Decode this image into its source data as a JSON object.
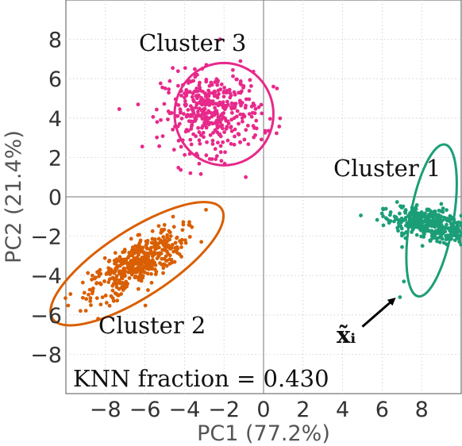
{
  "chart_data": {
    "type": "scatter",
    "xlabel": "PC1 (77.2%)",
    "ylabel": "PC2 (21.4%)",
    "xlim": [
      -10,
      10
    ],
    "ylim": [
      -10,
      10
    ],
    "xticks": [
      -8,
      -6,
      -4,
      -2,
      0,
      2,
      4,
      6,
      8
    ],
    "yticks": [
      -8,
      -6,
      -4,
      -2,
      0,
      2,
      4,
      6,
      8
    ],
    "xtick_labels": [
      "−8",
      "−6",
      "−4",
      "−2",
      "0",
      "2",
      "4",
      "6",
      "8"
    ],
    "ytick_labels": [
      "−8",
      "−6",
      "−4",
      "−2",
      "0",
      "2",
      "4",
      "6",
      "8"
    ],
    "grid": true,
    "clusters": [
      {
        "label": "Cluster 1",
        "color": "#1b9e77",
        "center": [
          8.5,
          -1.4
        ],
        "spread": [
          0.4,
          1.1
        ],
        "tilt_deg": 80,
        "n_points": 400,
        "ellipse": {
          "center": [
            8.5,
            -1.2
          ],
          "rx": 3.9,
          "ry": 1.1,
          "angle_deg": 80
        }
      },
      {
        "label": "Cluster 2",
        "color": "#d95f02",
        "center": [
          -6.4,
          -3.4
        ],
        "spread": [
          1.4,
          0.5
        ],
        "tilt_deg": 33,
        "n_points": 450,
        "ellipse": {
          "center": [
            -6.4,
            -3.4
          ],
          "rx": 5.1,
          "ry": 1.7,
          "angle_deg": 33
        }
      },
      {
        "label": "Cluster 3",
        "color": "#e7298a",
        "center": [
          -2.6,
          4.3
        ],
        "spread": [
          1.25,
          1.0
        ],
        "tilt_deg": 0,
        "n_points": 400,
        "ellipse": {
          "center": [
            -2.0,
            4.2
          ],
          "rx": 2.5,
          "ry": 2.6,
          "angle_deg": 0
        }
      }
    ],
    "outliers": {
      "color": "#1b9e77",
      "points": [
        [
          6.9,
          -5.1
        ],
        [
          7.1,
          -4.3
        ]
      ]
    },
    "extra_points": {
      "color": "#e7298a",
      "points": [
        [
          -2.2,
          8.0
        ],
        [
          -0.9,
          1.0
        ],
        [
          -3.7,
          1.2
        ],
        [
          -5.2,
          3.9
        ],
        [
          0.5,
          5.6
        ]
      ]
    },
    "annotations": [
      {
        "text": "x̃ᵢ",
        "arrow_from": [
          5.0,
          -6.6
        ],
        "arrow_to": [
          6.6,
          -5.2
        ]
      }
    ],
    "knn_text": "KNN fraction = 0.430"
  }
}
